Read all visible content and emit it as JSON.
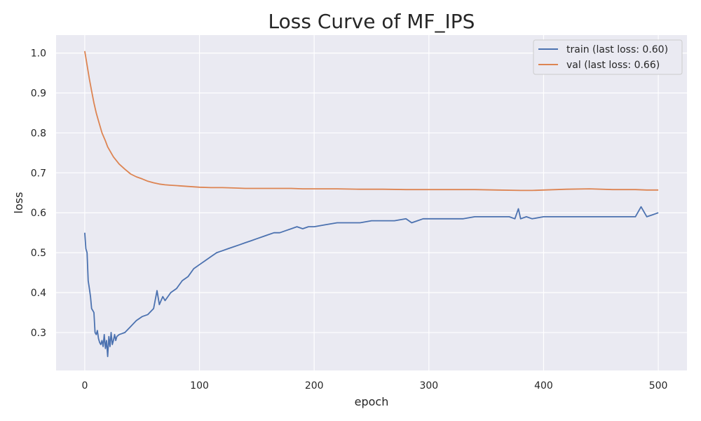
{
  "chart_data": {
    "type": "line",
    "title": "Loss Curve of MF_IPS",
    "xlabel": "epoch",
    "ylabel": "loss",
    "xlim": [
      -25,
      525
    ],
    "ylim": [
      0.205,
      1.045
    ],
    "xticks": [
      0,
      100,
      200,
      300,
      400,
      500
    ],
    "yticks": [
      0.3,
      0.4,
      0.5,
      0.6,
      0.7,
      0.8,
      0.9,
      1.0
    ],
    "xtick_labels": [
      "0",
      "100",
      "200",
      "300",
      "400",
      "500"
    ],
    "ytick_labels": [
      "0.3",
      "0.4",
      "0.5",
      "0.6",
      "0.7",
      "0.8",
      "0.9",
      "1.0"
    ],
    "grid": true,
    "legend_position": "top-right",
    "series": [
      {
        "name": "train (last loss: 0.60)",
        "color": "#4c72b0",
        "x": [
          0,
          1,
          2,
          3,
          4,
          5,
          6,
          7,
          8,
          9,
          10,
          11,
          12,
          13,
          14,
          15,
          16,
          17,
          18,
          19,
          20,
          21,
          22,
          23,
          24,
          25,
          26,
          27,
          28,
          30,
          35,
          40,
          45,
          50,
          55,
          60,
          63,
          65,
          68,
          70,
          75,
          80,
          85,
          90,
          95,
          100,
          105,
          110,
          115,
          120,
          125,
          130,
          135,
          140,
          145,
          150,
          155,
          160,
          165,
          170,
          175,
          180,
          185,
          190,
          195,
          200,
          210,
          220,
          230,
          240,
          250,
          260,
          270,
          280,
          285,
          290,
          295,
          300,
          310,
          320,
          330,
          340,
          350,
          360,
          370,
          375,
          378,
          380,
          385,
          390,
          400,
          410,
          420,
          430,
          440,
          450,
          460,
          470,
          480,
          485,
          490,
          495,
          500
        ],
        "y": [
          0.55,
          0.51,
          0.5,
          0.43,
          0.41,
          0.39,
          0.36,
          0.355,
          0.35,
          0.3,
          0.295,
          0.305,
          0.285,
          0.275,
          0.27,
          0.28,
          0.265,
          0.295,
          0.26,
          0.28,
          0.24,
          0.29,
          0.265,
          0.3,
          0.27,
          0.28,
          0.295,
          0.28,
          0.29,
          0.295,
          0.3,
          0.315,
          0.33,
          0.34,
          0.345,
          0.36,
          0.405,
          0.37,
          0.39,
          0.38,
          0.4,
          0.41,
          0.43,
          0.44,
          0.46,
          0.47,
          0.48,
          0.49,
          0.5,
          0.505,
          0.51,
          0.515,
          0.52,
          0.525,
          0.53,
          0.535,
          0.54,
          0.545,
          0.55,
          0.55,
          0.555,
          0.56,
          0.565,
          0.56,
          0.565,
          0.565,
          0.57,
          0.575,
          0.575,
          0.575,
          0.58,
          0.58,
          0.58,
          0.585,
          0.575,
          0.58,
          0.585,
          0.585,
          0.585,
          0.585,
          0.585,
          0.59,
          0.59,
          0.59,
          0.59,
          0.585,
          0.61,
          0.585,
          0.59,
          0.585,
          0.59,
          0.59,
          0.59,
          0.59,
          0.59,
          0.59,
          0.59,
          0.59,
          0.59,
          0.615,
          0.59,
          0.595,
          0.6
        ]
      },
      {
        "name": "val (last loss: 0.66)",
        "color": "#dd8452",
        "x": [
          0,
          2,
          4,
          6,
          8,
          10,
          12,
          15,
          18,
          20,
          25,
          30,
          35,
          40,
          45,
          50,
          55,
          60,
          65,
          70,
          75,
          80,
          90,
          100,
          110,
          120,
          130,
          140,
          150,
          160,
          170,
          180,
          190,
          200,
          220,
          240,
          260,
          280,
          300,
          320,
          340,
          360,
          380,
          390,
          400,
          420,
          440,
          460,
          480,
          490,
          500
        ],
        "y": [
          1.005,
          0.97,
          0.935,
          0.905,
          0.875,
          0.85,
          0.83,
          0.8,
          0.78,
          0.765,
          0.74,
          0.722,
          0.709,
          0.697,
          0.69,
          0.685,
          0.679,
          0.675,
          0.672,
          0.67,
          0.669,
          0.668,
          0.666,
          0.664,
          0.663,
          0.663,
          0.662,
          0.661,
          0.661,
          0.661,
          0.661,
          0.661,
          0.66,
          0.66,
          0.66,
          0.659,
          0.659,
          0.658,
          0.658,
          0.658,
          0.658,
          0.657,
          0.656,
          0.656,
          0.657,
          0.659,
          0.66,
          0.658,
          0.658,
          0.657,
          0.657
        ]
      }
    ]
  }
}
